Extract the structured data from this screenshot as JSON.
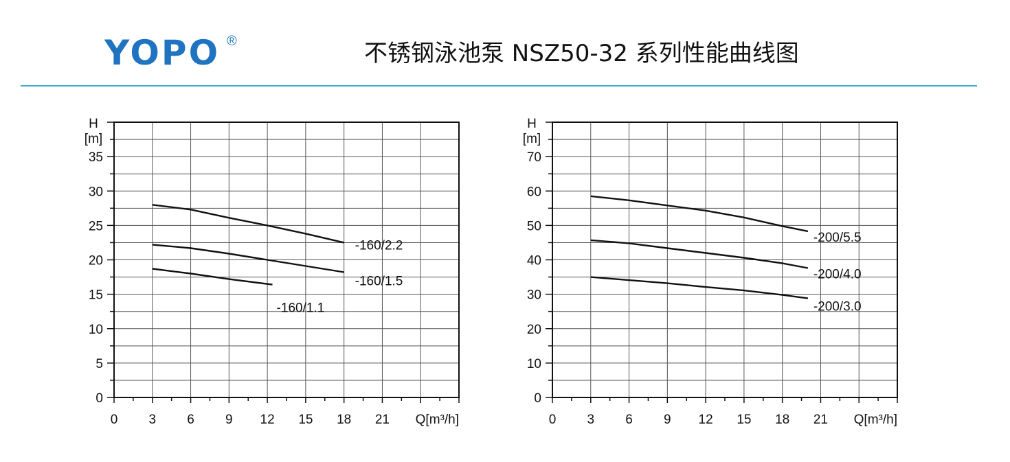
{
  "brand": {
    "name": "YOPO",
    "registered_mark": "®",
    "color": "#1f73c0"
  },
  "header": {
    "title": "不锈钢泳池泵 NSZ50-32 系列性能曲线图",
    "rule_color": "#3da7d6"
  },
  "chart_data": [
    {
      "type": "line",
      "x_label": "Q[m³/h]",
      "y_label_top": "H",
      "y_label_unit": "[m]",
      "xlim": [
        0,
        27
      ],
      "ylim": [
        0,
        40
      ],
      "x_ticks": [
        0,
        3,
        6,
        9,
        12,
        15,
        18,
        21
      ],
      "y_ticks": [
        0,
        5,
        10,
        15,
        20,
        25,
        30,
        35
      ],
      "grid": true,
      "series": [
        {
          "name": "-160/2.2",
          "x": [
            3,
            6,
            9,
            12,
            15,
            18
          ],
          "y": [
            28.0,
            27.3,
            26.1,
            25.0,
            23.8,
            22.5
          ]
        },
        {
          "name": "-160/1.5",
          "x": [
            3,
            6,
            9,
            12,
            15,
            18
          ],
          "y": [
            22.2,
            21.7,
            20.9,
            20.0,
            19.1,
            18.2
          ]
        },
        {
          "name": "-160/1.1",
          "x": [
            3,
            6,
            9,
            12.4
          ],
          "y": [
            18.7,
            18.0,
            17.2,
            16.4
          ]
        }
      ]
    },
    {
      "type": "line",
      "x_label": "Q[m³/h]",
      "y_label_top": "H",
      "y_label_unit": "[m]",
      "xlim": [
        0,
        27
      ],
      "ylim": [
        0,
        80
      ],
      "x_ticks": [
        0,
        3,
        6,
        9,
        12,
        15,
        18,
        21
      ],
      "y_ticks": [
        0,
        10,
        20,
        30,
        40,
        50,
        60,
        70
      ],
      "grid": true,
      "series": [
        {
          "name": "-200/5.5",
          "x": [
            3,
            6,
            9,
            12,
            15,
            18,
            20
          ],
          "y": [
            58.5,
            57.3,
            55.8,
            54.3,
            52.3,
            49.8,
            48.3
          ]
        },
        {
          "name": "-200/4.0",
          "x": [
            3,
            6,
            9,
            12,
            15,
            18,
            20
          ],
          "y": [
            45.7,
            44.8,
            43.4,
            42.0,
            40.6,
            39.0,
            37.6
          ]
        },
        {
          "name": "-200/3.0",
          "x": [
            3,
            6,
            9,
            12,
            15,
            18,
            20
          ],
          "y": [
            35.0,
            34.1,
            33.2,
            32.1,
            31.1,
            29.8,
            28.8
          ]
        }
      ]
    }
  ]
}
